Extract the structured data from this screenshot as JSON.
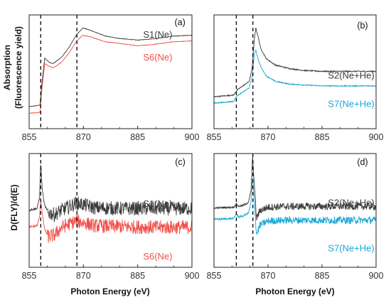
{
  "colors": {
    "black": "#3a3a3a",
    "red": "#f0504a",
    "blue": "#1aa7d6",
    "dashed": "#000000"
  },
  "labels": {
    "ylabel_top_line1": "Absorption",
    "ylabel_top_line2": "(Fluorescence yield)",
    "ylabel_bottom": "D(FLY)/d(E)",
    "xlabel_left": "Photon Energy (eV)",
    "xlabel_right": "Photon Energy (eV)"
  },
  "chart_data": [
    {
      "panel": "(a)",
      "type": "line",
      "xlim": [
        855,
        900
      ],
      "xticks": [
        "855",
        "870",
        "885",
        "900"
      ],
      "dashed_x": [
        858.2,
        868.2
      ],
      "series": [
        {
          "name": "S1(Ne)",
          "color": "black",
          "x": [
            855,
            858.0,
            858.5,
            859.3,
            860.5,
            861.5,
            862.5,
            864,
            866,
            868,
            869.8,
            872,
            876,
            880,
            885,
            890,
            895,
            900
          ],
          "y": [
            0.02,
            0.04,
            0.3,
            0.62,
            0.57,
            0.55,
            0.58,
            0.63,
            0.75,
            0.9,
            0.99,
            0.96,
            0.89,
            0.86,
            0.84,
            0.86,
            0.89,
            0.9
          ]
        },
        {
          "name": "S6(Ne)",
          "color": "red",
          "x": [
            855,
            858.0,
            858.5,
            859.3,
            860.5,
            861.5,
            862.5,
            864,
            866,
            868,
            869.8,
            872,
            876,
            880,
            885,
            890,
            895,
            900
          ],
          "y": [
            -0.06,
            -0.05,
            0.22,
            0.55,
            0.52,
            0.5,
            0.52,
            0.57,
            0.68,
            0.82,
            0.9,
            0.88,
            0.82,
            0.8,
            0.77,
            0.79,
            0.82,
            0.83
          ]
        }
      ]
    },
    {
      "panel": "(b)",
      "type": "line",
      "xlim": [
        855,
        900
      ],
      "xticks": [
        "855",
        "870",
        "885",
        "900"
      ],
      "dashed_x": [
        861.2,
        865.8
      ],
      "series": [
        {
          "name": "S2(Ne+He)",
          "color": "black",
          "x": [
            855,
            860.5,
            861.3,
            863,
            864.8,
            865.6,
            866.2,
            866.6,
            867.2,
            868,
            869.5,
            872,
            876,
            880,
            885,
            890,
            895,
            900
          ],
          "y": [
            0.2,
            0.22,
            0.27,
            0.32,
            0.37,
            0.52,
            0.83,
            0.96,
            0.87,
            0.73,
            0.62,
            0.55,
            0.51,
            0.49,
            0.48,
            0.48,
            0.48,
            0.48
          ]
        },
        {
          "name": "S7(Ne+He)",
          "color": "blue",
          "x": [
            855,
            860.5,
            861.3,
            863,
            864.8,
            865.6,
            866.2,
            866.6,
            867.2,
            868,
            869.5,
            872,
            876,
            880,
            885,
            890,
            895,
            900
          ],
          "y": [
            0.13,
            0.15,
            0.21,
            0.25,
            0.3,
            0.42,
            0.67,
            0.72,
            0.62,
            0.53,
            0.43,
            0.37,
            0.34,
            0.33,
            0.32,
            0.32,
            0.32,
            0.32
          ]
        }
      ]
    },
    {
      "panel": "(c)",
      "type": "line",
      "xlim": [
        855,
        900
      ],
      "xticks": [
        "855",
        "870",
        "885",
        "900"
      ],
      "dashed_x": [
        858.2,
        868.2
      ],
      "series": [
        {
          "name": "S1(Ne)",
          "color": "black",
          "x": [
            855,
            857.2,
            857.9,
            858.2,
            858.6,
            859.2,
            860.2,
            862,
            864,
            866,
            868,
            870,
            873,
            880,
            890,
            900
          ],
          "y": [
            0.28,
            0.3,
            0.45,
            0.9,
            0.55,
            0.35,
            0.25,
            0.22,
            0.28,
            0.32,
            0.37,
            0.35,
            0.31,
            0.3,
            0.3,
            0.3
          ]
        },
        {
          "name": "S6(Ne)",
          "color": "red",
          "x": [
            855,
            857.2,
            857.9,
            858.2,
            858.6,
            859.2,
            860.2,
            862,
            864,
            866,
            868,
            870,
            873,
            880,
            890,
            900
          ],
          "y": [
            0.06,
            0.08,
            0.2,
            0.42,
            0.25,
            0.05,
            -0.06,
            -0.04,
            0.06,
            0.1,
            0.14,
            0.12,
            0.08,
            0.07,
            0.06,
            0.06
          ]
        }
      ]
    },
    {
      "panel": "(d)",
      "type": "line",
      "xlim": [
        855,
        900
      ],
      "xticks": [
        "855",
        "870",
        "885",
        "900"
      ],
      "dashed_x": [
        861.2,
        865.8
      ],
      "series": [
        {
          "name": "S2(Ne+He)",
          "color": "black",
          "x": [
            855,
            860.5,
            861.2,
            861.8,
            863,
            864.6,
            865.3,
            865.7,
            866.2,
            866.8,
            867.8,
            870,
            875,
            885,
            900
          ],
          "y": [
            0.33,
            0.34,
            0.38,
            0.35,
            0.36,
            0.4,
            0.55,
            0.96,
            0.62,
            0.2,
            0.3,
            0.34,
            0.35,
            0.35,
            0.35
          ]
        },
        {
          "name": "S7(Ne+He)",
          "color": "blue",
          "x": [
            855,
            860.5,
            861.2,
            861.8,
            863,
            864.6,
            865.3,
            865.7,
            866.2,
            866.8,
            867.8,
            870,
            875,
            885,
            900
          ],
          "y": [
            0.19,
            0.2,
            0.26,
            0.22,
            0.23,
            0.27,
            0.4,
            0.7,
            0.42,
            0.0,
            0.12,
            0.17,
            0.18,
            0.18,
            0.18
          ]
        }
      ]
    }
  ]
}
